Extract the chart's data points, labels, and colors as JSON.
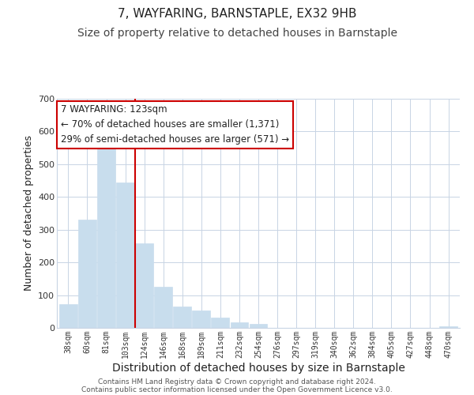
{
  "title": "7, WAYFARING, BARNSTAPLE, EX32 9HB",
  "subtitle": "Size of property relative to detached houses in Barnstaple",
  "xlabel": "Distribution of detached houses by size in Barnstaple",
  "ylabel": "Number of detached properties",
  "footer_lines": [
    "Contains HM Land Registry data © Crown copyright and database right 2024.",
    "Contains public sector information licensed under the Open Government Licence v3.0."
  ],
  "bar_labels": [
    "38sqm",
    "60sqm",
    "81sqm",
    "103sqm",
    "124sqm",
    "146sqm",
    "168sqm",
    "189sqm",
    "211sqm",
    "232sqm",
    "254sqm",
    "276sqm",
    "297sqm",
    "319sqm",
    "340sqm",
    "362sqm",
    "384sqm",
    "405sqm",
    "427sqm",
    "448sqm",
    "470sqm"
  ],
  "bar_heights": [
    72,
    330,
    560,
    443,
    258,
    126,
    65,
    52,
    31,
    18,
    13,
    0,
    0,
    0,
    0,
    0,
    0,
    0,
    0,
    0,
    5
  ],
  "bar_color": "#c8dded",
  "bar_edge_color": "#c8dded",
  "vline_color": "#cc0000",
  "annotation_title": "7 WAYFARING: 123sqm",
  "annotation_line1": "← 70% of detached houses are smaller (1,371)",
  "annotation_line2": "29% of semi-detached houses are larger (571) →",
  "annotation_box_color": "#ffffff",
  "annotation_box_edge": "#cc0000",
  "ylim": [
    0,
    700
  ],
  "yticks": [
    0,
    100,
    200,
    300,
    400,
    500,
    600,
    700
  ],
  "bg_color": "#ffffff",
  "grid_color": "#c8d4e4",
  "title_fontsize": 11,
  "subtitle_fontsize": 10,
  "xlabel_fontsize": 10,
  "ylabel_fontsize": 9
}
